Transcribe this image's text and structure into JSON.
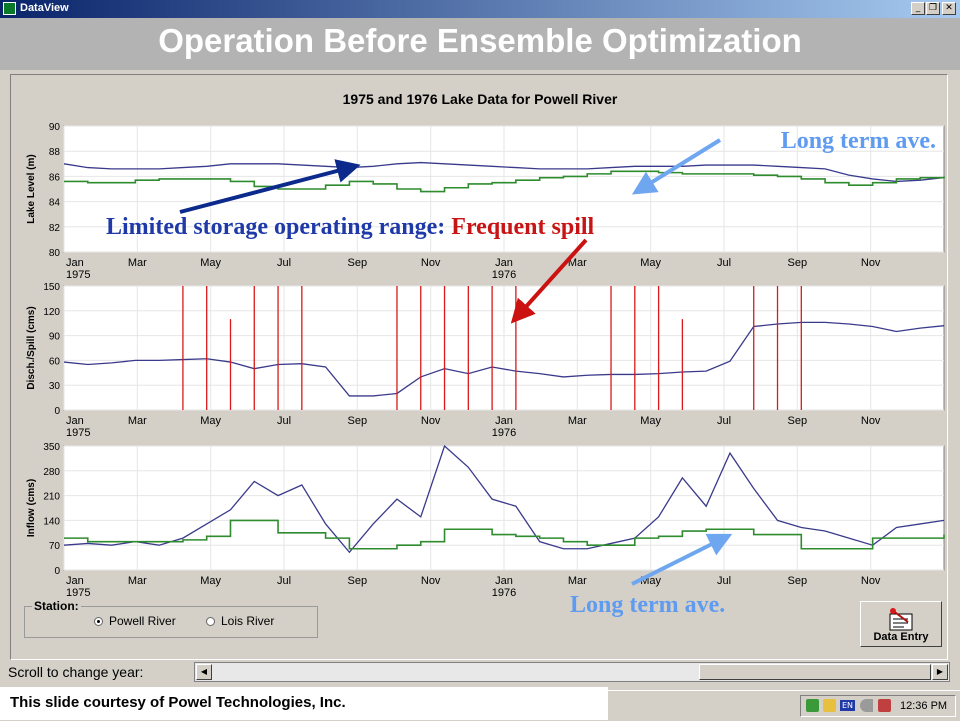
{
  "window": {
    "app_title": "DataView",
    "btn_minimize": "_",
    "btn_restore": "❐",
    "btn_close": "✕"
  },
  "slide": {
    "title": "Operation Before Ensemble Optimization",
    "footer": "This slide courtesy of Powel Technologies, Inc."
  },
  "annotations": {
    "long_term_top": "Long term ave.",
    "limited_storage": "Limited storage operating range: ",
    "frequent_spill": "Frequent spill",
    "long_term_bottom": "Long term ave."
  },
  "colors": {
    "observed": "#3a3a8c",
    "long_term": "#2e8b2e",
    "spill": "#d81a1a",
    "arrow_blue_dark": "#0b2a8c",
    "arrow_blue_light": "#6fa6f0",
    "arrow_red": "#cc1111",
    "label_blue": "#1f3aa8",
    "label_red": "#c81414",
    "label_lightblue": "#5f9bf0"
  },
  "chart_data": {
    "type": "line",
    "title": "1975 and 1976 Lake Data for Powell River",
    "x_ticks": [
      {
        "label": "Jan",
        "year": "1975"
      },
      {
        "label": "Mar",
        "year": ""
      },
      {
        "label": "May",
        "year": ""
      },
      {
        "label": "Jul",
        "year": ""
      },
      {
        "label": "Sep",
        "year": ""
      },
      {
        "label": "Nov",
        "year": ""
      },
      {
        "label": "Jan",
        "year": "1976"
      },
      {
        "label": "Mar",
        "year": ""
      },
      {
        "label": "May",
        "year": ""
      },
      {
        "label": "Jul",
        "year": ""
      },
      {
        "label": "Sep",
        "year": ""
      },
      {
        "label": "Nov",
        "year": ""
      }
    ],
    "panels": [
      {
        "ylabel": "Lake Level (m)",
        "ylim": [
          80,
          90
        ],
        "yticks": [
          "80",
          "82",
          "84",
          "86",
          "88",
          "90"
        ],
        "series": [
          {
            "role": "observed",
            "values": [
              87.0,
              86.7,
              86.6,
              86.6,
              86.6,
              86.7,
              86.8,
              87.0,
              87.0,
              87.0,
              86.9,
              86.8,
              86.7,
              86.8,
              87.0,
              87.1,
              87.0,
              86.9,
              86.8,
              86.7,
              86.6,
              86.6,
              86.6,
              86.7,
              86.8,
              86.8,
              86.8,
              86.9,
              86.9,
              86.9,
              86.8,
              86.7,
              86.6,
              86.1,
              85.8,
              85.6,
              85.7,
              85.9
            ]
          },
          {
            "role": "long_term",
            "values": [
              85.6,
              85.5,
              85.5,
              85.7,
              85.8,
              85.8,
              85.8,
              85.6,
              85.2,
              85.0,
              85.0,
              85.3,
              85.6,
              85.4,
              85.0,
              84.8,
              85.1,
              85.4,
              85.5,
              85.7,
              85.9,
              86.0,
              86.2,
              86.4,
              86.4,
              86.3,
              86.2,
              86.2,
              86.2,
              86.1,
              86.0,
              85.8,
              85.5,
              85.3,
              85.5,
              85.8,
              85.9,
              86.0
            ]
          }
        ]
      },
      {
        "ylabel": "Disch./Spill (cms)",
        "ylim": [
          0,
          150
        ],
        "yticks": [
          "0",
          "30",
          "60",
          "90",
          "120",
          "150"
        ],
        "series": [
          {
            "role": "observed",
            "values": [
              58,
              55,
              57,
              60,
              60,
              61,
              62,
              58,
              50,
              55,
              56,
              52,
              17,
              17,
              20,
              40,
              50,
              44,
              52,
              47,
              44,
              40,
              42,
              43,
              43,
              44,
              46,
              47,
              59,
              101,
              104,
              106,
              106,
              104,
              101,
              95,
              99,
              102
            ]
          },
          {
            "role": "spill",
            "values": [
              0,
              0,
              0,
              0,
              0,
              150,
              150,
              110,
              150,
              150,
              150,
              0,
              0,
              0,
              150,
              150,
              150,
              150,
              150,
              150,
              0,
              0,
              0,
              150,
              150,
              150,
              110,
              0,
              0,
              150,
              150,
              150,
              0,
              0,
              0,
              0,
              0,
              0
            ]
          }
        ]
      },
      {
        "ylabel": "Inflow (cms)",
        "ylim": [
          0,
          350
        ],
        "yticks": [
          "0",
          "70",
          "140",
          "210",
          "280",
          "350"
        ],
        "series": [
          {
            "role": "observed",
            "values": [
              70,
              75,
              70,
              80,
              70,
              90,
              130,
              170,
              250,
              210,
              240,
              130,
              50,
              130,
              200,
              150,
              350,
              290,
              200,
              180,
              80,
              60,
              60,
              75,
              90,
              150,
              260,
              180,
              330,
              230,
              140,
              120,
              110,
              90,
              70,
              120,
              130,
              140
            ]
          },
          {
            "role": "long_term",
            "values": [
              90,
              80,
              80,
              80,
              80,
              85,
              95,
              140,
              140,
              105,
              105,
              90,
              60,
              60,
              70,
              80,
              115,
              115,
              100,
              95,
              90,
              80,
              70,
              70,
              90,
              95,
              110,
              115,
              115,
              100,
              100,
              60,
              60,
              60,
              90,
              90,
              90,
              100
            ]
          }
        ]
      }
    ]
  },
  "controls": {
    "station_label": "Station:",
    "station_options": [
      {
        "label": "Powell River",
        "selected": true
      },
      {
        "label": "Lois River",
        "selected": false
      }
    ],
    "data_entry_label": "Data Entry",
    "scroll_label": "Scroll to change year:",
    "scroll_left": "◀",
    "scroll_right": "▶"
  },
  "taskbar": {
    "lang": "EN",
    "clock": "12:36 PM"
  }
}
